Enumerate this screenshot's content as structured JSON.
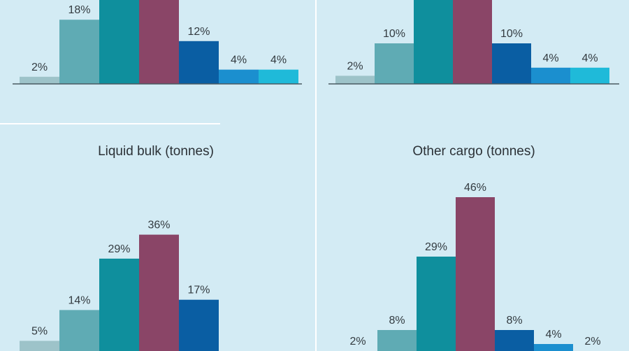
{
  "colors": {
    "background": "#d3ebf4",
    "divider": "#ffffff",
    "axis": "#4a5a62",
    "label_text": "#333b40",
    "bars": [
      "#9dc3c9",
      "#5fabb4",
      "#0f8f9d",
      "#8a4567",
      "#0a5ea3",
      "#1b8fcf",
      "#1fbad9"
    ]
  },
  "chart_data": [
    {
      "type": "bar",
      "title": "",
      "labels": [
        "2%",
        "18%",
        "",
        "",
        "12%",
        "4%",
        "4%"
      ],
      "values": [
        2,
        18,
        null,
        null,
        12,
        4,
        4
      ]
    },
    {
      "type": "bar",
      "title": "",
      "labels": [
        "2%",
        "10%",
        "",
        "",
        "10%",
        "4%",
        "4%"
      ],
      "values": [
        2,
        10,
        null,
        null,
        10,
        4,
        4
      ]
    },
    {
      "type": "bar",
      "title": "Liquid bulk (tonnes)",
      "labels": [
        "5%",
        "14%",
        "29%",
        "36%",
        "17%",
        "",
        ""
      ],
      "values": [
        5,
        14,
        29,
        36,
        17,
        null,
        null
      ]
    },
    {
      "type": "bar",
      "title": "Other cargo (tonnes)",
      "labels": [
        "2%",
        "8%",
        "29%",
        "46%",
        "8%",
        "4%",
        "2%"
      ],
      "values": [
        2,
        8,
        29,
        46,
        8,
        4,
        2
      ]
    }
  ]
}
